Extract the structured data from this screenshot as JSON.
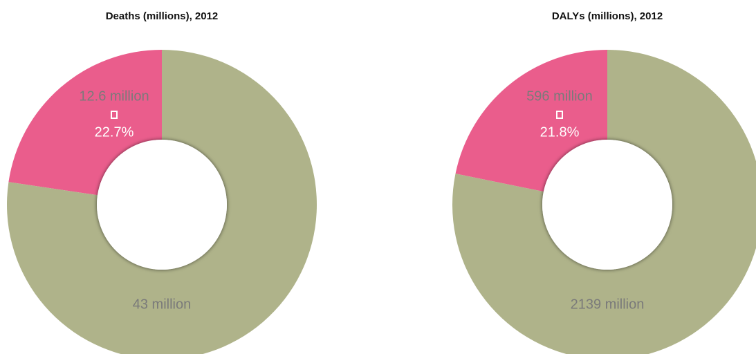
{
  "chart_data": [
    {
      "type": "pie",
      "title": "Deaths (millions), 2012",
      "values": [
        12.6,
        43
      ],
      "value_labels": [
        "12.6 million",
        "43 million"
      ],
      "colors": [
        "#ea5d8c",
        "#afb38a"
      ],
      "annotation": "22.7%"
    },
    {
      "type": "pie",
      "title": "DALYs (millions), 2012",
      "values": [
        596,
        2139
      ],
      "value_labels": [
        "596 million",
        "2139 million"
      ],
      "colors": [
        "#ea5d8c",
        "#afb38a"
      ],
      "annotation": "21.8%"
    }
  ]
}
